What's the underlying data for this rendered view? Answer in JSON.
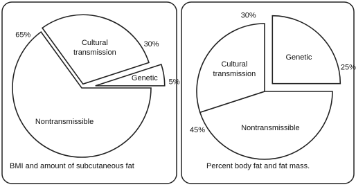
{
  "chart_data": [
    {
      "type": "pie",
      "title": "BMI and amount of subcutaneous fat",
      "categories": [
        "Cultural transmission",
        "Genetic",
        "Nontransmissible"
      ],
      "values": [
        30,
        5,
        65
      ],
      "value_labels": [
        "30%",
        "5%",
        "65%"
      ],
      "color": "#ffffff"
    },
    {
      "type": "pie",
      "title": "Percent body fat and fat mass.",
      "categories": [
        "Genetic",
        "Nontransmissible",
        "Cultural transmission"
      ],
      "values": [
        25,
        45,
        30
      ],
      "value_labels": [
        "25%",
        "45%",
        "30%"
      ],
      "color": "#ffffff"
    }
  ]
}
